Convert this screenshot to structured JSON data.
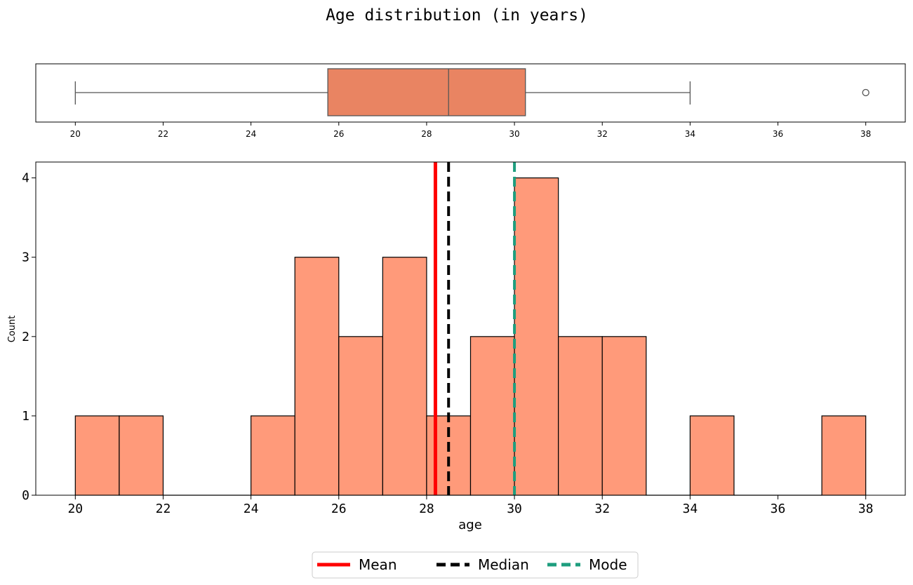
{
  "chart_data": [
    {
      "type": "box",
      "title": "Age distribution (in years)",
      "xlim": [
        19.1,
        38.9
      ],
      "xticks": [
        20,
        22,
        24,
        26,
        28,
        30,
        32,
        34,
        36,
        38
      ],
      "whisker_low": 20,
      "q1": 25.75,
      "median": 28.5,
      "q3": 30.25,
      "whisker_high": 34,
      "outliers": [
        38
      ],
      "box_color": "#E98462",
      "line_color": "#555555"
    },
    {
      "type": "histogram",
      "xlabel": "age",
      "ylabel": "Count",
      "xlim": [
        19.1,
        38.9
      ],
      "ylim": [
        0,
        4.2
      ],
      "xticks": [
        20,
        22,
        24,
        26,
        28,
        30,
        32,
        34,
        36,
        38
      ],
      "yticks": [
        0,
        1,
        2,
        3,
        4
      ],
      "bins": [
        {
          "start": 20,
          "end": 21,
          "count": 1
        },
        {
          "start": 21,
          "end": 22,
          "count": 1
        },
        {
          "start": 22,
          "end": 23,
          "count": 0
        },
        {
          "start": 23,
          "end": 24,
          "count": 0
        },
        {
          "start": 24,
          "end": 25,
          "count": 1
        },
        {
          "start": 25,
          "end": 26,
          "count": 3
        },
        {
          "start": 26,
          "end": 27,
          "count": 2
        },
        {
          "start": 27,
          "end": 28,
          "count": 3
        },
        {
          "start": 28,
          "end": 29,
          "count": 1
        },
        {
          "start": 29,
          "end": 30,
          "count": 2
        },
        {
          "start": 30,
          "end": 31,
          "count": 4
        },
        {
          "start": 31,
          "end": 32,
          "count": 2
        },
        {
          "start": 32,
          "end": 33,
          "count": 2
        },
        {
          "start": 33,
          "end": 34,
          "count": 0
        },
        {
          "start": 34,
          "end": 35,
          "count": 1
        },
        {
          "start": 35,
          "end": 36,
          "count": 0
        },
        {
          "start": 36,
          "end": 37,
          "count": 0
        },
        {
          "start": 37,
          "end": 38,
          "count": 1
        }
      ],
      "bar_color": "#FF9A7A",
      "reference_lines": [
        {
          "name": "Mean",
          "value": 28.2,
          "color": "#FF0000",
          "style": "solid"
        },
        {
          "name": "Median",
          "value": 28.5,
          "color": "#000000",
          "style": "dashed"
        },
        {
          "name": "Mode",
          "value": 30,
          "color": "#1E9E7E",
          "style": "dashed"
        }
      ],
      "legend": {
        "position": "bottom-center"
      },
      "grid": false
    }
  ]
}
